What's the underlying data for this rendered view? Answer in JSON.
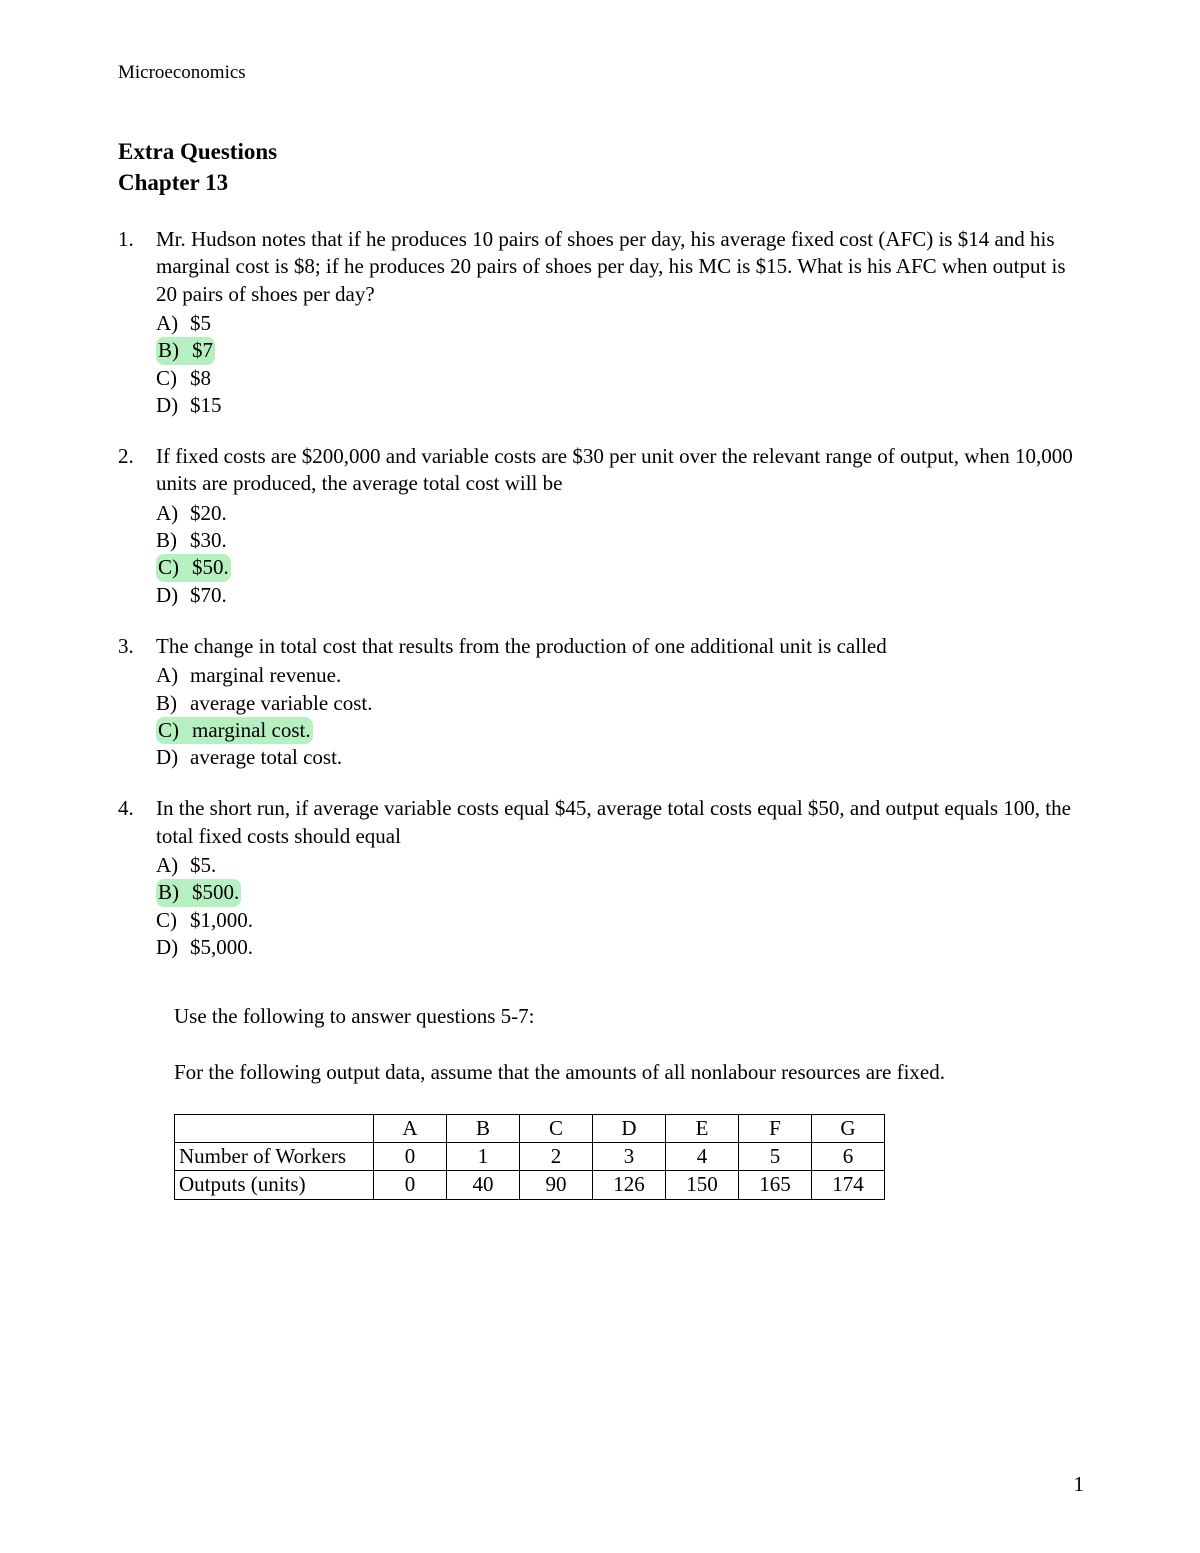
{
  "header": "Microeconomics",
  "title_line1": "Extra Questions",
  "title_line2": "Chapter 13",
  "highlight_color": "#b6f0c0",
  "page_number": "1",
  "questions": [
    {
      "num": "1.",
      "stem": "Mr. Hudson notes that if he produces 10 pairs of shoes per day, his average fixed cost (AFC) is $14 and his marginal cost is $8; if he produces 20 pairs of shoes per day, his MC is $15. What is his AFC when output is 20 pairs of shoes per day?",
      "choices": [
        {
          "letter": "A)",
          "text": "$5",
          "hl": false
        },
        {
          "letter": "B)",
          "text": "$7",
          "hl": true
        },
        {
          "letter": "C)",
          "text": "$8",
          "hl": false
        },
        {
          "letter": "D)",
          "text": "$15",
          "hl": false
        }
      ]
    },
    {
      "num": "2.",
      "stem": "If fixed costs are $200,000 and variable costs are $30 per unit over the relevant range of output, when 10,000 units are produced, the average total cost will be",
      "choices": [
        {
          "letter": "A)",
          "text": "$20.",
          "hl": false
        },
        {
          "letter": "B)",
          "text": "$30.",
          "hl": false
        },
        {
          "letter": "C)",
          "text": "$50.",
          "hl": true
        },
        {
          "letter": "D)",
          "text": "$70.",
          "hl": false
        }
      ]
    },
    {
      "num": "3.",
      "stem": "The change in total cost that results from the production of one additional unit is called",
      "choices": [
        {
          "letter": "A)",
          "text": "marginal revenue.",
          "hl": false
        },
        {
          "letter": "B)",
          "text": "average variable cost.",
          "hl": false
        },
        {
          "letter": "C)",
          "text": "marginal cost.",
          "hl": true
        },
        {
          "letter": "D)",
          "text": "average total cost.",
          "hl": false
        }
      ]
    },
    {
      "num": "4.",
      "stem": "In the short run, if average variable costs equal $45, average total costs equal $50, and output equals 100, the total fixed costs should equal",
      "choices": [
        {
          "letter": "A)",
          "text": "$5.",
          "hl": false
        },
        {
          "letter": "B)",
          "text": "$500.",
          "hl": true
        },
        {
          "letter": "C)",
          "text": "$1,000.",
          "hl": false
        },
        {
          "letter": "D)",
          "text": "$5,000.",
          "hl": false
        }
      ]
    }
  ],
  "instructions": {
    "line1": "Use the following to answer questions 5-7:",
    "line2": "For the following output data, assume that the amounts of all nonlabour resources are fixed."
  },
  "table": {
    "columns": [
      "",
      "A",
      "B",
      "C",
      "D",
      "E",
      "F",
      "G"
    ],
    "rows": [
      [
        "Number of Workers",
        "0",
        "1",
        "2",
        "3",
        "4",
        "5",
        "6"
      ],
      [
        "Outputs (units)",
        "0",
        "40",
        "90",
        "126",
        "150",
        "165",
        "174"
      ]
    ]
  }
}
